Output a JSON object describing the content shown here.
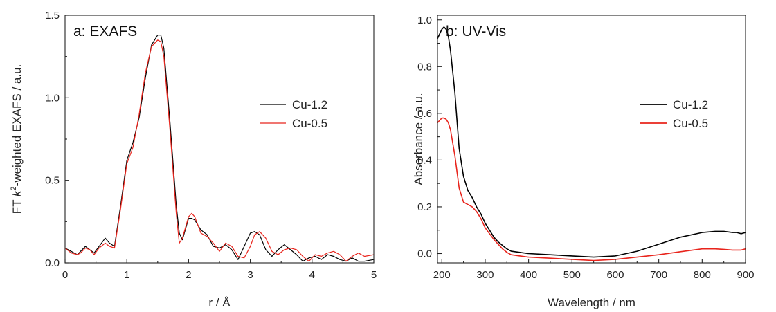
{
  "chart_data": [
    {
      "type": "line",
      "title": "a: EXAFS",
      "xlabel": "r / Å",
      "ylabel_pre": "FT ",
      "ylabel_k": "k",
      "ylabel_sup": "2",
      "ylabel_post": "-weighted EXAFS / a.u.",
      "xlim": [
        0,
        5
      ],
      "ylim": [
        0,
        1.5
      ],
      "xticks": [
        "0",
        "1",
        "2",
        "3",
        "4",
        "5"
      ],
      "yticks": [
        "0.0",
        "0.5",
        "1.0",
        "1.5"
      ],
      "grid": false,
      "legend_position": "center-right",
      "series": [
        {
          "name": "Cu-1.2",
          "color": "#000000",
          "x": [
            0,
            0.1,
            0.2,
            0.25,
            0.33,
            0.4,
            0.47,
            0.55,
            0.65,
            0.72,
            0.8,
            0.9,
            1.0,
            1.1,
            1.2,
            1.3,
            1.4,
            1.5,
            1.55,
            1.6,
            1.7,
            1.8,
            1.85,
            1.9,
            2.0,
            2.05,
            2.1,
            2.2,
            2.3,
            2.4,
            2.5,
            2.6,
            2.7,
            2.8,
            2.9,
            3.0,
            3.07,
            3.15,
            3.25,
            3.35,
            3.45,
            3.55,
            3.65,
            3.75,
            3.85,
            3.95,
            4.05,
            4.15,
            4.25,
            4.35,
            4.45,
            4.55,
            4.65,
            4.75,
            4.85,
            5.0
          ],
          "y": [
            0.09,
            0.07,
            0.05,
            0.07,
            0.1,
            0.08,
            0.06,
            0.1,
            0.15,
            0.12,
            0.1,
            0.35,
            0.62,
            0.73,
            0.88,
            1.12,
            1.32,
            1.38,
            1.38,
            1.3,
            0.85,
            0.35,
            0.18,
            0.14,
            0.27,
            0.27,
            0.26,
            0.2,
            0.17,
            0.1,
            0.09,
            0.11,
            0.08,
            0.02,
            0.1,
            0.18,
            0.19,
            0.17,
            0.08,
            0.04,
            0.08,
            0.11,
            0.08,
            0.05,
            0.01,
            0.03,
            0.04,
            0.02,
            0.05,
            0.04,
            0.02,
            0.01,
            0.03,
            0.01,
            0.01,
            0.02
          ]
        },
        {
          "name": "Cu-0.5",
          "color": "#e8241c",
          "x": [
            0,
            0.1,
            0.2,
            0.25,
            0.33,
            0.4,
            0.47,
            0.55,
            0.65,
            0.72,
            0.8,
            0.9,
            1.0,
            1.1,
            1.2,
            1.3,
            1.4,
            1.5,
            1.55,
            1.6,
            1.7,
            1.8,
            1.85,
            1.9,
            2.0,
            2.05,
            2.1,
            2.2,
            2.3,
            2.4,
            2.5,
            2.6,
            2.7,
            2.8,
            2.9,
            3.0,
            3.07,
            3.15,
            3.25,
            3.35,
            3.45,
            3.55,
            3.65,
            3.75,
            3.85,
            3.95,
            4.05,
            4.15,
            4.25,
            4.35,
            4.45,
            4.55,
            4.65,
            4.75,
            4.85,
            5.0
          ],
          "y": [
            0.09,
            0.06,
            0.05,
            0.06,
            0.09,
            0.08,
            0.05,
            0.09,
            0.12,
            0.1,
            0.09,
            0.33,
            0.6,
            0.7,
            0.9,
            1.15,
            1.31,
            1.35,
            1.34,
            1.25,
            0.8,
            0.3,
            0.12,
            0.15,
            0.28,
            0.3,
            0.28,
            0.18,
            0.16,
            0.12,
            0.07,
            0.12,
            0.1,
            0.04,
            0.03,
            0.1,
            0.17,
            0.19,
            0.15,
            0.07,
            0.05,
            0.08,
            0.09,
            0.08,
            0.04,
            0.01,
            0.05,
            0.04,
            0.06,
            0.07,
            0.05,
            0.01,
            0.04,
            0.06,
            0.04,
            0.05
          ]
        }
      ]
    },
    {
      "type": "line",
      "title": "b: UV-Vis",
      "xlabel": "Wavelength / nm",
      "ylabel": "Absorbance / a.u.",
      "xlim": [
        190,
        900
      ],
      "ylim": [
        -0.04,
        1.02
      ],
      "xticks": [
        "200",
        "300",
        "400",
        "500",
        "600",
        "700",
        "800",
        "900"
      ],
      "yticks": [
        "0.0",
        "0.2",
        "0.4",
        "0.6",
        "0.8",
        "1.0"
      ],
      "grid": false,
      "legend_position": "center-right",
      "series": [
        {
          "name": "Cu-1.2",
          "color": "#000000",
          "x": [
            190,
            195,
            200,
            205,
            210,
            215,
            220,
            230,
            240,
            250,
            260,
            270,
            280,
            290,
            300,
            310,
            320,
            330,
            340,
            350,
            360,
            380,
            400,
            450,
            500,
            550,
            600,
            650,
            700,
            750,
            800,
            830,
            850,
            870,
            880,
            890,
            900
          ],
          "y": [
            0.92,
            0.94,
            0.96,
            0.97,
            0.96,
            0.93,
            0.87,
            0.69,
            0.45,
            0.33,
            0.27,
            0.24,
            0.2,
            0.17,
            0.13,
            0.1,
            0.07,
            0.05,
            0.035,
            0.02,
            0.01,
            0.005,
            0.0,
            -0.005,
            -0.01,
            -0.015,
            -0.01,
            0.01,
            0.04,
            0.07,
            0.09,
            0.095,
            0.095,
            0.09,
            0.09,
            0.085,
            0.09
          ]
        },
        {
          "name": "Cu-0.5",
          "color": "#e8241c",
          "x": [
            190,
            195,
            200,
            205,
            210,
            215,
            220,
            230,
            240,
            250,
            260,
            270,
            280,
            290,
            300,
            310,
            320,
            330,
            340,
            350,
            360,
            380,
            400,
            450,
            500,
            550,
            600,
            650,
            700,
            750,
            800,
            830,
            850,
            870,
            880,
            890,
            900
          ],
          "y": [
            0.56,
            0.57,
            0.58,
            0.58,
            0.575,
            0.56,
            0.53,
            0.42,
            0.28,
            0.22,
            0.21,
            0.2,
            0.18,
            0.15,
            0.11,
            0.085,
            0.06,
            0.04,
            0.02,
            0.005,
            -0.005,
            -0.01,
            -0.015,
            -0.02,
            -0.025,
            -0.03,
            -0.025,
            -0.015,
            -0.005,
            0.008,
            0.02,
            0.02,
            0.018,
            0.015,
            0.015,
            0.015,
            0.02
          ]
        }
      ]
    }
  ]
}
